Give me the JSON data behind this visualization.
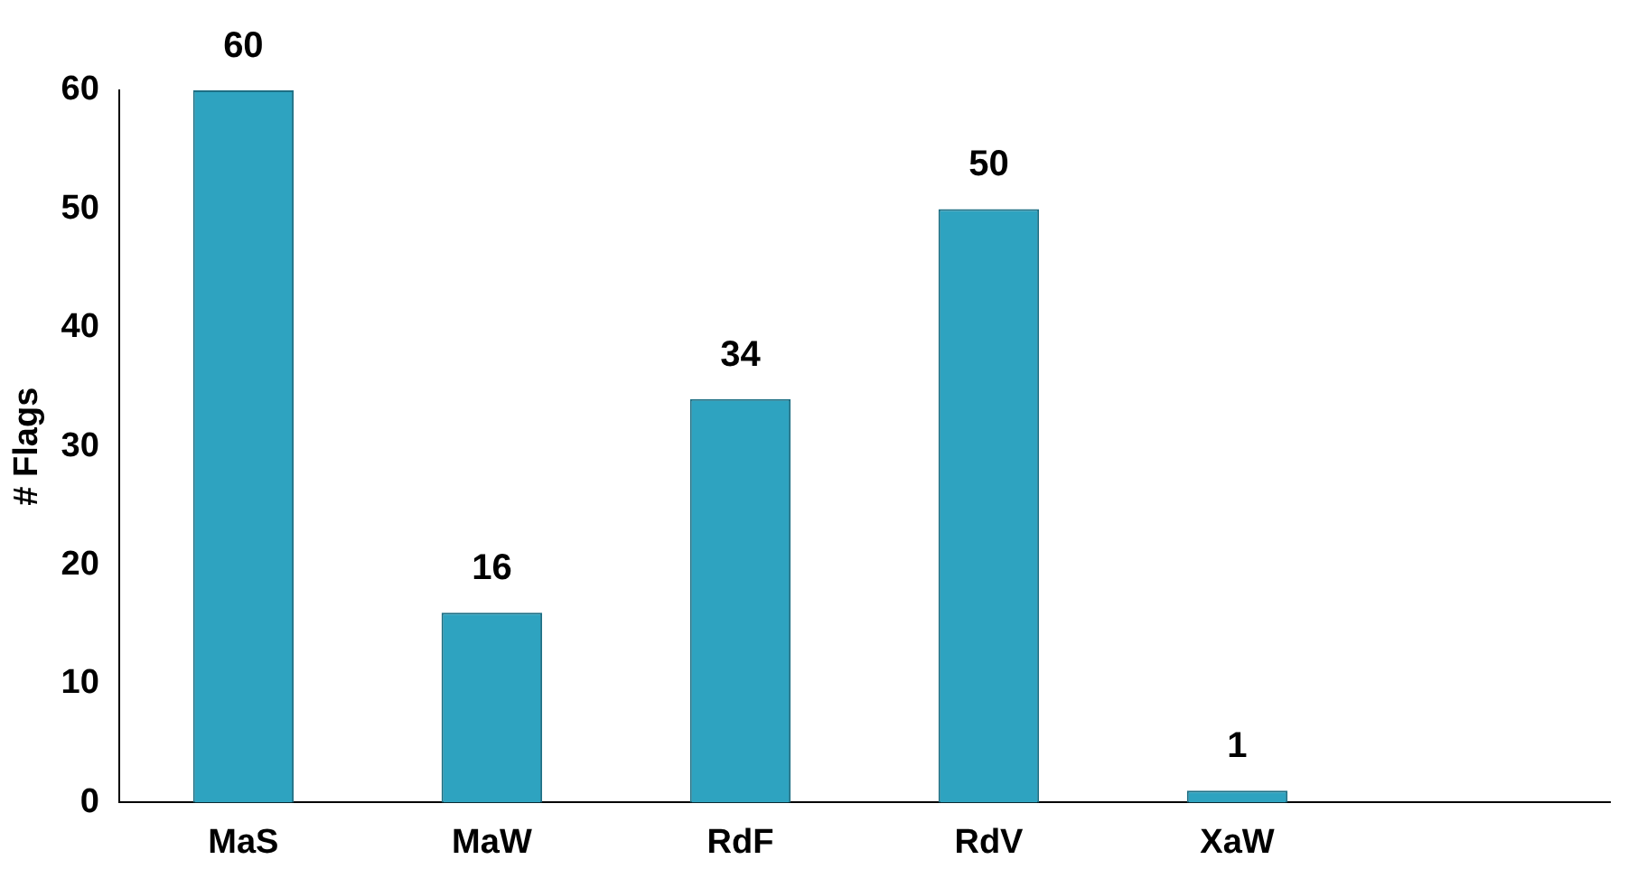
{
  "chart_data": {
    "type": "bar",
    "ylabel": "# Flags",
    "categories": [
      "MaS",
      "MaW",
      "RdF",
      "RdV",
      "XaW",
      null
    ],
    "values": [
      60,
      16,
      34,
      50,
      1,
      null
    ],
    "color": "#2ea3c0",
    "ylim": [
      0,
      60
    ],
    "yticks": [
      0,
      10,
      20,
      30,
      40,
      50,
      60
    ],
    "grid": false,
    "legend": false,
    "data_labels": true
  }
}
